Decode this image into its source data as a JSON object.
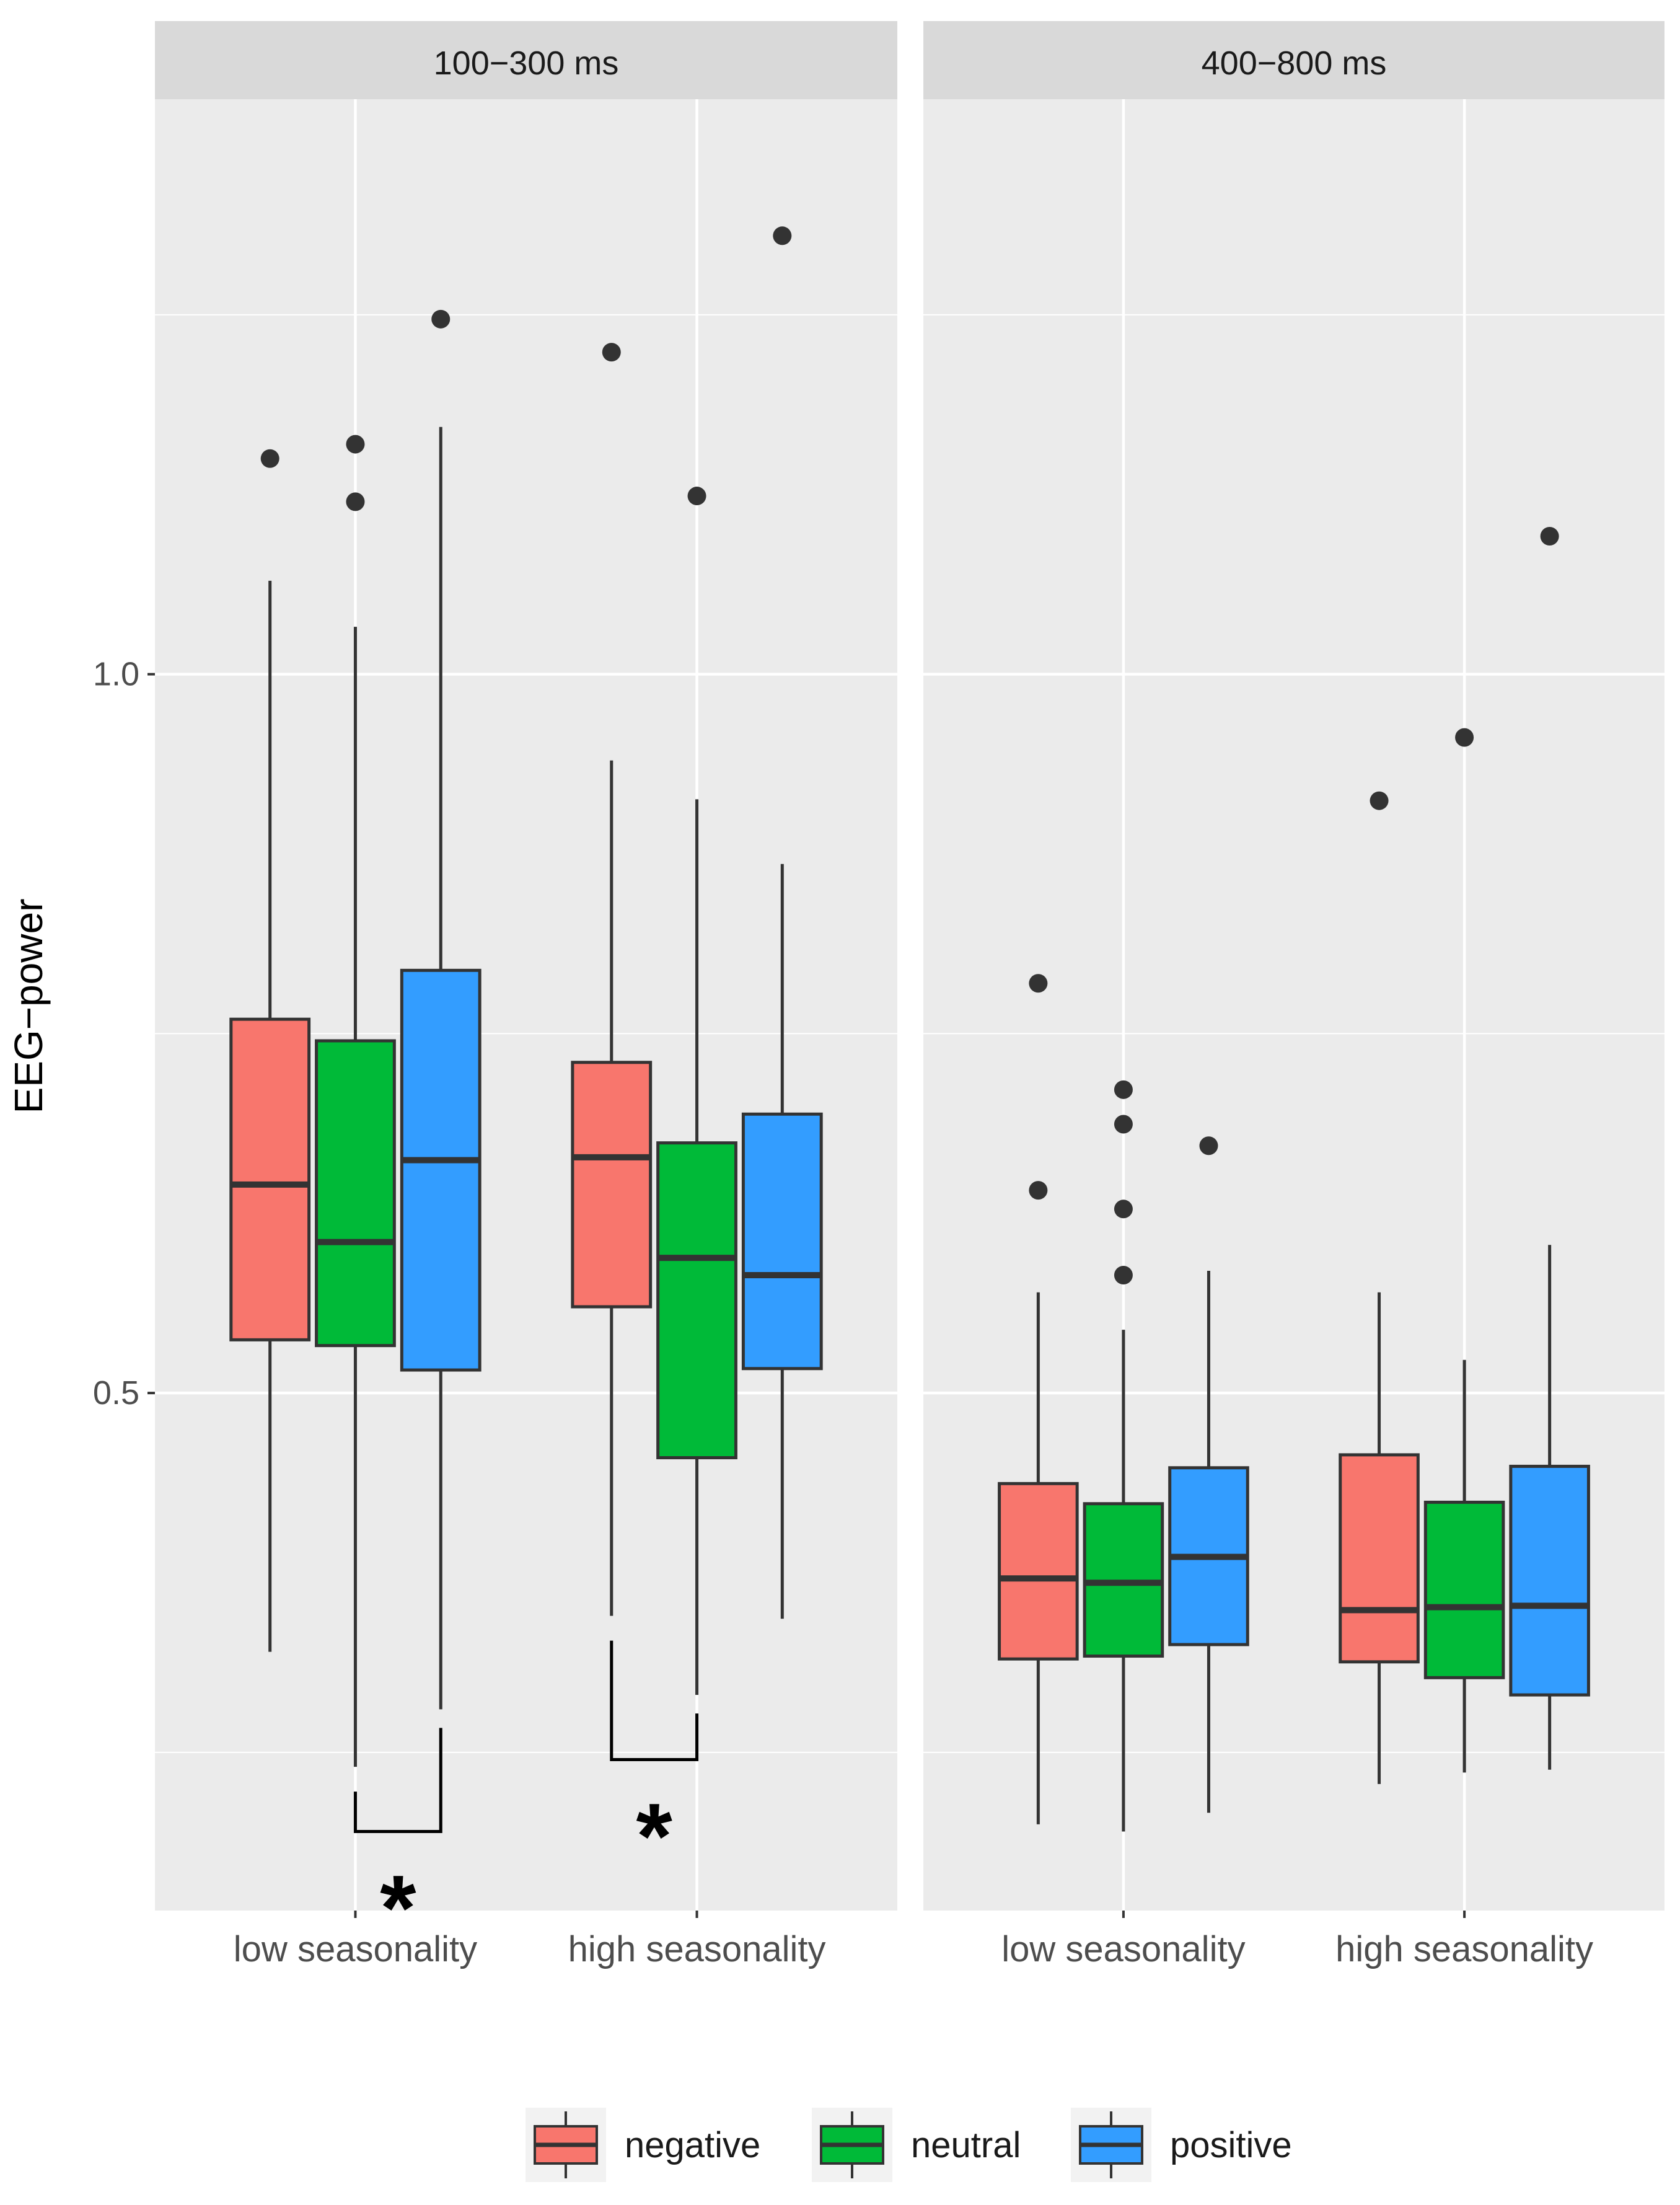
{
  "chart_data": {
    "type": "boxplot",
    "ylabel": "EEG−power",
    "ylim": [
      0.14,
      1.4
    ],
    "yticks": [
      0.5,
      1.0
    ],
    "ytick_labels": [
      "0.5",
      "1.0"
    ],
    "categories": [
      "low seasonality",
      "high seasonality"
    ],
    "groups": [
      "negative",
      "neutral",
      "positive"
    ],
    "colors": {
      "negative": "#F8766D",
      "neutral": "#00BA38",
      "positive": "#339DFF",
      "panel_bg": "#EBEBEB",
      "strip_bg": "#D9D9D9",
      "grid": "#FFFFFF",
      "outline": "#333333",
      "tick_text": "#4D4D4D",
      "significance": "#000000"
    },
    "legend": {
      "position": "bottom",
      "entries": [
        "negative",
        "neutral",
        "positive"
      ]
    },
    "panels": [
      {
        "title": "100−300 ms",
        "boxes": [
          {
            "category": "low seasonality",
            "group": "negative",
            "whisker_low": 0.32,
            "q1": 0.537,
            "median": 0.645,
            "q3": 0.76,
            "whisker_high": 1.065,
            "outliers": [
              1.15
            ]
          },
          {
            "category": "low seasonality",
            "group": "neutral",
            "whisker_low": 0.24,
            "q1": 0.533,
            "median": 0.605,
            "q3": 0.745,
            "whisker_high": 1.033,
            "outliers": [
              1.16,
              1.12
            ]
          },
          {
            "category": "low seasonality",
            "group": "positive",
            "whisker_low": 0.28,
            "q1": 0.516,
            "median": 0.662,
            "q3": 0.794,
            "whisker_high": 1.172,
            "outliers": [
              1.247
            ]
          },
          {
            "category": "high seasonality",
            "group": "negative",
            "whisker_low": 0.345,
            "q1": 0.56,
            "median": 0.664,
            "q3": 0.73,
            "whisker_high": 0.94,
            "outliers": [
              1.224
            ]
          },
          {
            "category": "high seasonality",
            "group": "neutral",
            "whisker_low": 0.29,
            "q1": 0.455,
            "median": 0.594,
            "q3": 0.674,
            "whisker_high": 0.913,
            "outliers": [
              1.124
            ]
          },
          {
            "category": "high seasonality",
            "group": "positive",
            "whisker_low": 0.343,
            "q1": 0.517,
            "median": 0.582,
            "q3": 0.694,
            "whisker_high": 0.868,
            "outliers": [
              1.305
            ]
          }
        ],
        "significance": [
          {
            "category": "low seasonality",
            "between": [
              "neutral",
              "positive"
            ],
            "label": "*"
          },
          {
            "category": "high seasonality",
            "between": [
              "negative",
              "neutral"
            ],
            "label": "*"
          }
        ]
      },
      {
        "title": "400−800 ms",
        "boxes": [
          {
            "category": "low seasonality",
            "group": "negative",
            "whisker_low": 0.2,
            "q1": 0.315,
            "median": 0.371,
            "q3": 0.437,
            "whisker_high": 0.57,
            "outliers": [
              0.785,
              0.641
            ]
          },
          {
            "category": "low seasonality",
            "group": "neutral",
            "whisker_low": 0.195,
            "q1": 0.317,
            "median": 0.368,
            "q3": 0.423,
            "whisker_high": 0.544,
            "outliers": [
              0.711,
              0.687,
              0.628,
              0.582
            ]
          },
          {
            "category": "low seasonality",
            "group": "positive",
            "whisker_low": 0.208,
            "q1": 0.325,
            "median": 0.386,
            "q3": 0.448,
            "whisker_high": 0.585,
            "outliers": [
              0.672
            ]
          },
          {
            "category": "high seasonality",
            "group": "negative",
            "whisker_low": 0.228,
            "q1": 0.313,
            "median": 0.349,
            "q3": 0.457,
            "whisker_high": 0.57,
            "outliers": [
              0.912
            ]
          },
          {
            "category": "high seasonality",
            "group": "neutral",
            "whisker_low": 0.236,
            "q1": 0.302,
            "median": 0.351,
            "q3": 0.424,
            "whisker_high": 0.523,
            "outliers": [
              0.956
            ]
          },
          {
            "category": "high seasonality",
            "group": "positive",
            "whisker_low": 0.238,
            "q1": 0.29,
            "median": 0.352,
            "q3": 0.449,
            "whisker_high": 0.603,
            "outliers": [
              1.096
            ]
          }
        ]
      }
    ]
  }
}
